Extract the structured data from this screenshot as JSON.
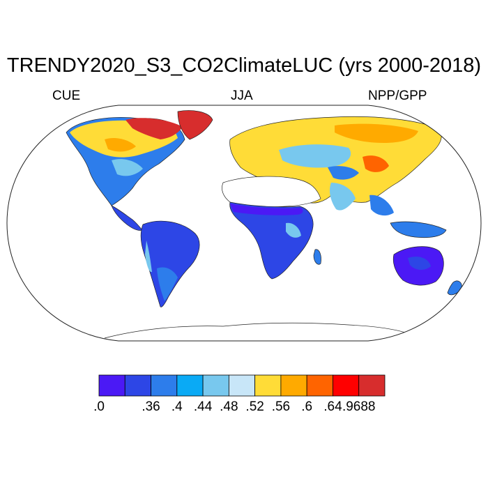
{
  "title": "TRENDY2020_S3_CO2ClimateLUC (yrs 2000-2018)",
  "subtitle_left": "CUE",
  "subtitle_center": "JJA",
  "subtitle_right": "NPP/GPP",
  "colorbar": {
    "colors": [
      "#4b19f5",
      "#2d46e6",
      "#2d7deb",
      "#0aaaf5",
      "#78c8ee",
      "#c8e6f8",
      "#ffdc37",
      "#ffaa00",
      "#ff6400",
      "#ff0000",
      "#d72d2d"
    ],
    "tick_labels": [
      ".0",
      ".36",
      ".4",
      ".44",
      ".48",
      ".52",
      ".56",
      ".6",
      ".64",
      ".9688"
    ]
  }
}
